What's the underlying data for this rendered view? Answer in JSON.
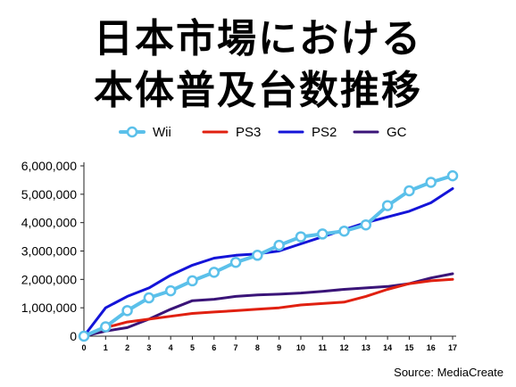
{
  "title_lines": [
    "日本市場における",
    "本体普及台数推移"
  ],
  "source": "Source: MediaCreate",
  "chart_data": {
    "type": "line",
    "x": [
      0,
      1,
      2,
      3,
      4,
      5,
      6,
      7,
      8,
      9,
      10,
      11,
      12,
      13,
      14,
      15,
      16,
      17
    ],
    "ylim": [
      0,
      6000000
    ],
    "yticks": [
      0,
      1000000,
      2000000,
      3000000,
      4000000,
      5000000,
      6000000
    ],
    "ytick_labels": [
      "0",
      "1,000,000",
      "2,000,000",
      "3,000,000",
      "4,000,000",
      "5,000,000",
      "6,000,000"
    ],
    "grid": false,
    "legend_position": "top",
    "series": [
      {
        "name": "Wii",
        "color": "#5bc0ea",
        "marker": "circle",
        "values": [
          0,
          330000,
          900000,
          1350000,
          1600000,
          1950000,
          2250000,
          2600000,
          2850000,
          3200000,
          3500000,
          3600000,
          3700000,
          3920000,
          4600000,
          5120000,
          5420000,
          5650000
        ]
      },
      {
        "name": "PS3",
        "color": "#e02010",
        "values": [
          0,
          300000,
          500000,
          600000,
          700000,
          800000,
          850000,
          900000,
          950000,
          1000000,
          1100000,
          1150000,
          1200000,
          1400000,
          1650000,
          1850000,
          1950000,
          2000000
        ]
      },
      {
        "name": "PS2",
        "color": "#1414d8",
        "values": [
          0,
          1000000,
          1400000,
          1700000,
          2150000,
          2500000,
          2750000,
          2850000,
          2900000,
          3000000,
          3250000,
          3500000,
          3750000,
          4000000,
          4200000,
          4400000,
          4700000,
          5200000
        ]
      },
      {
        "name": "GC",
        "color": "#3a1478",
        "values": [
          0,
          180000,
          300000,
          600000,
          950000,
          1250000,
          1300000,
          1400000,
          1450000,
          1480000,
          1520000,
          1580000,
          1650000,
          1700000,
          1750000,
          1850000,
          2050000,
          2200000
        ]
      }
    ]
  }
}
